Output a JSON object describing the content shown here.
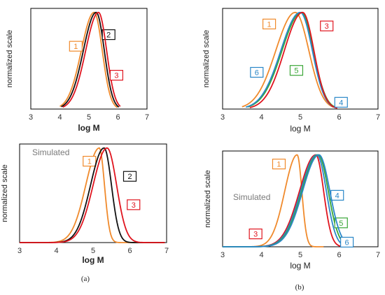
{
  "colors": {
    "orange": "#f08a2c",
    "black": "#111111",
    "red": "#e0141e",
    "green": "#3aa637",
    "blue": "#2a87c8"
  },
  "captions": {
    "a": "(a)",
    "b": "(b)"
  },
  "chart_data": [
    {
      "id": "top-left",
      "type": "line",
      "title": "",
      "xlabel": "log M",
      "xlabel_bold": true,
      "ylabel": "normalized scale",
      "xlim": [
        3,
        7
      ],
      "xticks": [
        "3",
        "4",
        "5",
        "6",
        "7"
      ],
      "series": [
        {
          "label": "1",
          "color": "orange",
          "center": 5.18,
          "sl": 0.44,
          "sr": 0.28,
          "xmin": 4.0,
          "xmax": 5.98,
          "callout": {
            "text": "1",
            "at": [
              4.55,
              0.65
            ]
          }
        },
        {
          "label": "2",
          "color": "black",
          "center": 5.25,
          "sl": 0.44,
          "sr": 0.28,
          "xmin": 4.05,
          "xmax": 6.03,
          "callout": {
            "text": "2",
            "at": [
              5.68,
              0.77
            ]
          }
        },
        {
          "label": "3",
          "color": "red",
          "center": 5.33,
          "sl": 0.44,
          "sr": 0.28,
          "xmin": 4.1,
          "xmax": 6.08,
          "callout": {
            "text": "3",
            "at": [
              5.95,
              0.35
            ]
          }
        }
      ]
    },
    {
      "id": "top-right",
      "type": "line",
      "title": "",
      "xlabel": "log M",
      "xlabel_bold": false,
      "ylabel": "normalized scale",
      "xlim": [
        3,
        7
      ],
      "xticks": [
        "3",
        "4",
        "5",
        "6",
        "7"
      ],
      "series": [
        {
          "label": "1",
          "color": "orange",
          "center": 4.87,
          "sl": 0.5,
          "sr": 0.35,
          "xmin": 3.5,
          "xmax": 5.85,
          "callout": {
            "text": "1",
            "at": [
              4.2,
              0.88
            ]
          }
        },
        {
          "label": "5",
          "color": "green",
          "center": 5.03,
          "sl": 0.5,
          "sr": 0.31,
          "xmin": 3.65,
          "xmax": 5.92,
          "callout": {
            "text": "5",
            "at": [
              4.9,
              0.4
            ]
          }
        },
        {
          "label": "6",
          "color": "blue",
          "center": 5.0,
          "sl": 0.5,
          "sr": 0.31,
          "xmin": 3.6,
          "xmax": 5.9,
          "callout": {
            "text": "6",
            "at": [
              3.88,
              0.38
            ]
          }
        },
        {
          "label": "3",
          "color": "red",
          "center": 5.06,
          "sl": 0.47,
          "sr": 0.29,
          "xmin": 3.7,
          "xmax": 5.95,
          "callout": {
            "text": "3",
            "at": [
              5.68,
              0.86
            ]
          }
        },
        {
          "label": "4",
          "color": "blue",
          "center": 5.0,
          "sl": 0.5,
          "sr": 0.31,
          "xmin": 5.8,
          "xmax": 5.8,
          "callout": {
            "text": "4",
            "at": [
              6.05,
              0.07
            ]
          }
        }
      ]
    },
    {
      "id": "bottom-left",
      "type": "line",
      "title": "",
      "xlabel": "log M",
      "xlabel_bold": true,
      "ylabel": "normalized scale",
      "annotation": "Simulated",
      "xlim": [
        3,
        7
      ],
      "xticks": [
        "3",
        "4",
        "5",
        "6",
        "7"
      ],
      "series": [
        {
          "label": "1",
          "color": "orange",
          "center": 5.17,
          "sl": 0.37,
          "sr": 0.14,
          "xmin": 3.0,
          "xmax": 6.95,
          "callout": {
            "text": "1",
            "at": [
              4.9,
              0.86
            ]
          }
        },
        {
          "label": "2",
          "color": "black",
          "center": 5.3,
          "sl": 0.37,
          "sr": 0.2,
          "xmin": 3.0,
          "xmax": 6.95,
          "callout": {
            "text": "2",
            "at": [
              6.0,
              0.7
            ]
          }
        },
        {
          "label": "3",
          "color": "red",
          "center": 5.38,
          "sl": 0.38,
          "sr": 0.26,
          "xmin": 3.0,
          "xmax": 6.95,
          "callout": {
            "text": "3",
            "at": [
              6.1,
              0.4
            ]
          }
        }
      ]
    },
    {
      "id": "bottom-right",
      "type": "line",
      "title": "",
      "xlabel": "log M",
      "xlabel_bold": false,
      "ylabel": "normalized scale",
      "annotation": "Simulated",
      "xlim": [
        3,
        7
      ],
      "xticks": [
        "3",
        "4",
        "5",
        "6",
        "7"
      ],
      "series": [
        {
          "label": "1",
          "color": "orange",
          "center": 4.92,
          "sl": 0.32,
          "sr": 0.12,
          "xmin": 3.0,
          "xmax": 5.6,
          "callout": {
            "text": "1",
            "at": [
              4.45,
              0.9
            ]
          }
        },
        {
          "label": "3",
          "color": "red",
          "center": 5.4,
          "sl": 0.42,
          "sr": 0.2,
          "xmin": 3.0,
          "xmax": 6.25,
          "callout": {
            "text": "3",
            "at": [
              3.85,
              0.14
            ]
          }
        },
        {
          "label": "4",
          "color": "blue",
          "center": 5.43,
          "sl": 0.42,
          "sr": 0.24,
          "xmin": 3.0,
          "xmax": 6.25,
          "callout": {
            "text": "4",
            "at": [
              5.95,
              0.56
            ]
          }
        },
        {
          "label": "5",
          "color": "green",
          "center": 5.46,
          "sl": 0.42,
          "sr": 0.26,
          "xmin": 3.0,
          "xmax": 6.25,
          "callout": {
            "text": "5",
            "at": [
              6.05,
              0.26
            ]
          }
        },
        {
          "label": "6",
          "color": "blue",
          "center": 5.48,
          "sl": 0.42,
          "sr": 0.28,
          "xmin": 3.0,
          "xmax": 6.25,
          "callout": {
            "text": "6",
            "at": [
              6.2,
              0.05
            ]
          }
        }
      ]
    }
  ]
}
